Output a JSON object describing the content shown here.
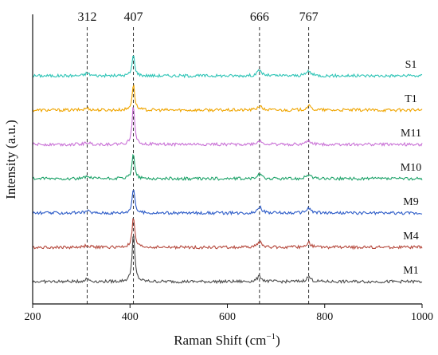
{
  "chart_data": {
    "type": "line",
    "title": "",
    "xlabel": "Raman Shift (cm",
    "xlabel_sup": "−1",
    "xlabel_close": ")",
    "ylabel": "Intensity (a.u.)",
    "xlim": [
      200,
      1000
    ],
    "x_ticks": [
      200,
      400,
      600,
      800,
      1000
    ],
    "y_ticks_shown": false,
    "grid": false,
    "reference_lines": [
      {
        "x": 312,
        "label": "312"
      },
      {
        "x": 407,
        "label": "407"
      },
      {
        "x": 666,
        "label": "666"
      },
      {
        "x": 767,
        "label": "767"
      }
    ],
    "series": [
      {
        "name": "S1",
        "color": "#2ec4b6",
        "baseline": 6,
        "peaks": [
          {
            "x": 312,
            "height": 0.2
          },
          {
            "x": 407,
            "height": 1.55
          },
          {
            "x": 666,
            "height": 0.4
          },
          {
            "x": 767,
            "height": 0.35
          }
        ]
      },
      {
        "name": "T1",
        "color": "#f0a500",
        "baseline": 5,
        "peaks": [
          {
            "x": 312,
            "height": 0.15
          },
          {
            "x": 407,
            "height": 1.9
          },
          {
            "x": 666,
            "height": 0.3
          },
          {
            "x": 767,
            "height": 0.3
          }
        ]
      },
      {
        "name": "M11",
        "color": "#c971d6",
        "baseline": 4,
        "peaks": [
          {
            "x": 312,
            "height": 0.15
          },
          {
            "x": 407,
            "height": 2.9
          },
          {
            "x": 666,
            "height": 0.25
          },
          {
            "x": 767,
            "height": 0.25
          }
        ]
      },
      {
        "name": "M10",
        "color": "#1fa36a",
        "baseline": 3,
        "peaks": [
          {
            "x": 312,
            "height": 0.15
          },
          {
            "x": 407,
            "height": 1.9
          },
          {
            "x": 666,
            "height": 0.3
          },
          {
            "x": 767,
            "height": 0.3
          }
        ]
      },
      {
        "name": "M9",
        "color": "#2d5cc8",
        "baseline": 2,
        "peaks": [
          {
            "x": 312,
            "height": 0.15
          },
          {
            "x": 407,
            "height": 1.85
          },
          {
            "x": 666,
            "height": 0.45
          },
          {
            "x": 767,
            "height": 0.35
          }
        ]
      },
      {
        "name": "M4",
        "color": "#b5483c",
        "baseline": 1,
        "peaks": [
          {
            "x": 312,
            "height": 0.15
          },
          {
            "x": 407,
            "height": 2.2
          },
          {
            "x": 666,
            "height": 0.4
          },
          {
            "x": 767,
            "height": 0.35
          }
        ]
      },
      {
        "name": "M1",
        "color": "#4a4a4a",
        "baseline": 0,
        "peaks": [
          {
            "x": 312,
            "height": 0.2
          },
          {
            "x": 407,
            "height": 3.6
          },
          {
            "x": 666,
            "height": 0.4
          },
          {
            "x": 767,
            "height": 0.35
          }
        ]
      }
    ]
  }
}
